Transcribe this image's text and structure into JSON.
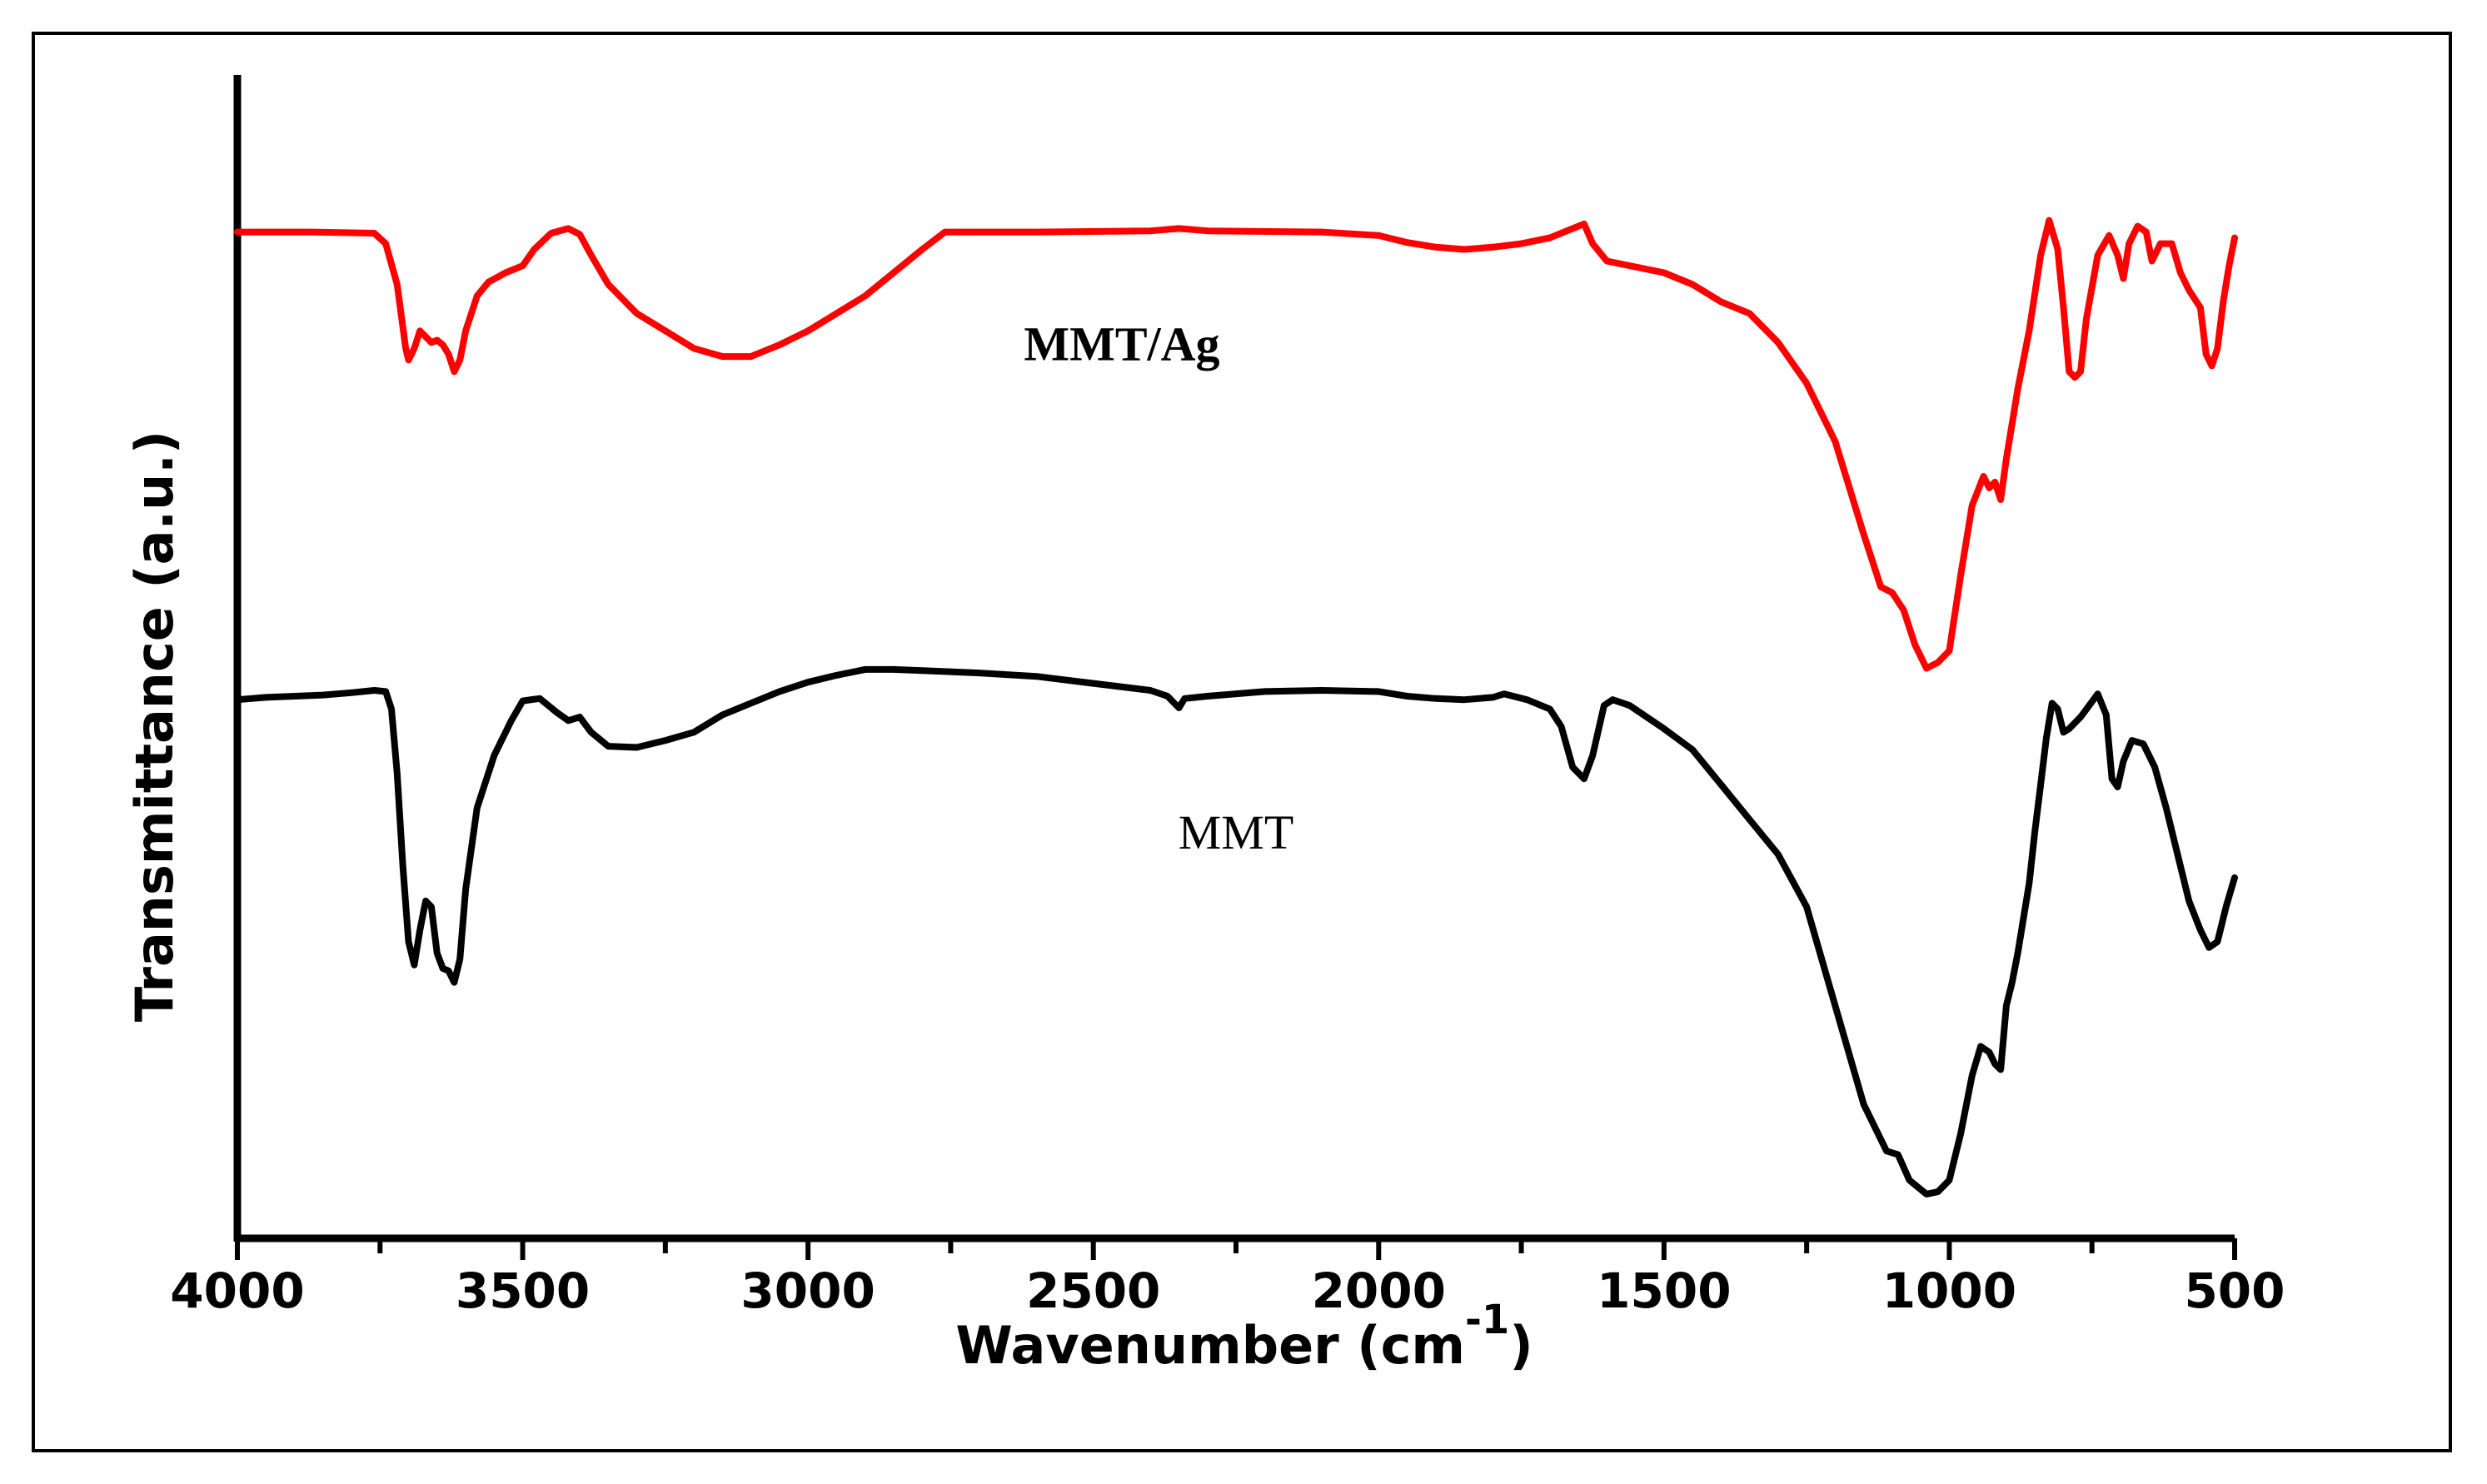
{
  "chart_data": {
    "type": "line",
    "title": "",
    "xlabel": "Wavenumber (cm",
    "xlabel_sup": "-1",
    "xlabel_close": ")",
    "ylabel": "Transmittance (a.u.)",
    "xlim": [
      4000,
      500
    ],
    "x_reversed": true,
    "ylim": [
      0,
      100
    ],
    "y_ticks_shown": false,
    "grid": false,
    "x_ticks": [
      4000,
      3500,
      3000,
      2500,
      2000,
      1500,
      1000,
      500
    ],
    "x_tick_labels": [
      "4000",
      "3500",
      "3000",
      "2500",
      "2000",
      "1500",
      "1000",
      "500"
    ],
    "series": [
      {
        "name": "MMT/Ag",
        "color": "#ff0000",
        "label": "MMT/Ag",
        "label_bold": true,
        "label_at": [
          2450,
          75.5
        ],
        "points": [
          [
            4000,
            86.5
          ],
          [
            3870,
            86.5
          ],
          [
            3760,
            86.4
          ],
          [
            3740,
            85.5
          ],
          [
            3720,
            82
          ],
          [
            3705,
            76.5
          ],
          [
            3700,
            75.5
          ],
          [
            3690,
            76.5
          ],
          [
            3680,
            78
          ],
          [
            3670,
            77.5
          ],
          [
            3660,
            77
          ],
          [
            3650,
            77.2
          ],
          [
            3640,
            76.8
          ],
          [
            3630,
            76
          ],
          [
            3620,
            74.5
          ],
          [
            3610,
            75.5
          ],
          [
            3600,
            78
          ],
          [
            3580,
            81
          ],
          [
            3560,
            82.2
          ],
          [
            3530,
            83
          ],
          [
            3500,
            83.6
          ],
          [
            3480,
            85
          ],
          [
            3450,
            86.4
          ],
          [
            3420,
            86.8
          ],
          [
            3400,
            86.3
          ],
          [
            3380,
            84.5
          ],
          [
            3350,
            82
          ],
          [
            3300,
            79.5
          ],
          [
            3250,
            78
          ],
          [
            3200,
            76.5
          ],
          [
            3150,
            75.8
          ],
          [
            3100,
            75.8
          ],
          [
            3050,
            76.8
          ],
          [
            3000,
            78
          ],
          [
            2950,
            79.5
          ],
          [
            2900,
            81
          ],
          [
            2850,
            83
          ],
          [
            2800,
            85
          ],
          [
            2760,
            86.5
          ],
          [
            2600,
            86.5
          ],
          [
            2400,
            86.6
          ],
          [
            2350,
            86.8
          ],
          [
            2300,
            86.6
          ],
          [
            2100,
            86.5
          ],
          [
            2000,
            86.2
          ],
          [
            1950,
            85.6
          ],
          [
            1900,
            85.2
          ],
          [
            1850,
            85.0
          ],
          [
            1800,
            85.2
          ],
          [
            1750,
            85.5
          ],
          [
            1700,
            86.0
          ],
          [
            1660,
            86.8
          ],
          [
            1640,
            87.2
          ],
          [
            1625,
            85.5
          ],
          [
            1600,
            84
          ],
          [
            1550,
            83.5
          ],
          [
            1500,
            83
          ],
          [
            1450,
            82
          ],
          [
            1400,
            80.5
          ],
          [
            1350,
            79.5
          ],
          [
            1300,
            77
          ],
          [
            1250,
            73.5
          ],
          [
            1200,
            68.5
          ],
          [
            1150,
            60.5
          ],
          [
            1120,
            56
          ],
          [
            1100,
            55.5
          ],
          [
            1080,
            54
          ],
          [
            1060,
            51
          ],
          [
            1040,
            49
          ],
          [
            1020,
            49.5
          ],
          [
            1000,
            50.5
          ],
          [
            980,
            57
          ],
          [
            960,
            63
          ],
          [
            940,
            65.5
          ],
          [
            930,
            64.5
          ],
          [
            920,
            65
          ],
          [
            910,
            63.5
          ],
          [
            900,
            67
          ],
          [
            880,
            73
          ],
          [
            860,
            78
          ],
          [
            840,
            84.5
          ],
          [
            825,
            87.5
          ],
          [
            810,
            85
          ],
          [
            800,
            80
          ],
          [
            790,
            74.5
          ],
          [
            780,
            74
          ],
          [
            770,
            74.5
          ],
          [
            760,
            79
          ],
          [
            740,
            84.5
          ],
          [
            720,
            86.2
          ],
          [
            705,
            84.5
          ],
          [
            695,
            82.5
          ],
          [
            685,
            85.5
          ],
          [
            670,
            87
          ],
          [
            655,
            86.5
          ],
          [
            645,
            84
          ],
          [
            630,
            85.5
          ],
          [
            610,
            85.5
          ],
          [
            595,
            83
          ],
          [
            580,
            81.5
          ],
          [
            560,
            80
          ],
          [
            550,
            76
          ],
          [
            540,
            75
          ],
          [
            530,
            76.5
          ],
          [
            520,
            80.5
          ],
          [
            510,
            83.5
          ],
          [
            500,
            86
          ]
        ]
      },
      {
        "name": "MMT",
        "color": "#000000",
        "label": "MMT",
        "label_bold": false,
        "label_at": [
          2250,
          33.5
        ],
        "points": [
          [
            4000,
            46.3
          ],
          [
            3950,
            46.5
          ],
          [
            3850,
            46.7
          ],
          [
            3800,
            46.9
          ],
          [
            3760,
            47.1
          ],
          [
            3740,
            47
          ],
          [
            3730,
            45.5
          ],
          [
            3720,
            40
          ],
          [
            3710,
            32
          ],
          [
            3700,
            25.5
          ],
          [
            3690,
            23.5
          ],
          [
            3680,
            26.5
          ],
          [
            3670,
            29
          ],
          [
            3660,
            28.5
          ],
          [
            3650,
            24.5
          ],
          [
            3640,
            23.2
          ],
          [
            3630,
            23
          ],
          [
            3620,
            22
          ],
          [
            3610,
            24
          ],
          [
            3600,
            30
          ],
          [
            3580,
            37
          ],
          [
            3550,
            41.5
          ],
          [
            3520,
            44.5
          ],
          [
            3500,
            46.2
          ],
          [
            3470,
            46.4
          ],
          [
            3440,
            45.2
          ],
          [
            3420,
            44.5
          ],
          [
            3400,
            44.8
          ],
          [
            3380,
            43.5
          ],
          [
            3350,
            42.3
          ],
          [
            3300,
            42.2
          ],
          [
            3250,
            42.8
          ],
          [
            3200,
            43.5
          ],
          [
            3150,
            45
          ],
          [
            3100,
            46
          ],
          [
            3050,
            47
          ],
          [
            3000,
            47.8
          ],
          [
            2950,
            48.4
          ],
          [
            2900,
            48.9
          ],
          [
            2850,
            48.9
          ],
          [
            2800,
            48.8
          ],
          [
            2700,
            48.6
          ],
          [
            2600,
            48.3
          ],
          [
            2500,
            47.7
          ],
          [
            2400,
            47.1
          ],
          [
            2370,
            46.6
          ],
          [
            2360,
            46.1
          ],
          [
            2350,
            45.6
          ],
          [
            2340,
            46.4
          ],
          [
            2300,
            46.6
          ],
          [
            2200,
            47
          ],
          [
            2100,
            47.1
          ],
          [
            2000,
            47
          ],
          [
            1950,
            46.6
          ],
          [
            1900,
            46.4
          ],
          [
            1850,
            46.3
          ],
          [
            1800,
            46.5
          ],
          [
            1780,
            46.8
          ],
          [
            1740,
            46.3
          ],
          [
            1700,
            45.5
          ],
          [
            1680,
            44
          ],
          [
            1660,
            40.5
          ],
          [
            1640,
            39.5
          ],
          [
            1625,
            41.5
          ],
          [
            1605,
            45.8
          ],
          [
            1590,
            46.3
          ],
          [
            1560,
            45.8
          ],
          [
            1500,
            43.8
          ],
          [
            1450,
            42
          ],
          [
            1400,
            39
          ],
          [
            1350,
            36
          ],
          [
            1300,
            33
          ],
          [
            1250,
            28.5
          ],
          [
            1200,
            20
          ],
          [
            1150,
            11.5
          ],
          [
            1110,
            7.5
          ],
          [
            1090,
            7.2
          ],
          [
            1070,
            5
          ],
          [
            1040,
            3.8
          ],
          [
            1020,
            4
          ],
          [
            1000,
            5
          ],
          [
            980,
            9
          ],
          [
            960,
            14
          ],
          [
            945,
            16.5
          ],
          [
            930,
            16
          ],
          [
            920,
            15
          ],
          [
            910,
            14.5
          ],
          [
            900,
            20
          ],
          [
            890,
            22
          ],
          [
            880,
            24.5
          ],
          [
            860,
            30.5
          ],
          [
            850,
            35
          ],
          [
            840,
            39
          ],
          [
            830,
            43
          ],
          [
            820,
            46
          ],
          [
            810,
            45.5
          ],
          [
            800,
            43.5
          ],
          [
            790,
            43.8
          ],
          [
            770,
            44.8
          ],
          [
            755,
            45.8
          ],
          [
            740,
            46.8
          ],
          [
            725,
            45
          ],
          [
            715,
            39.5
          ],
          [
            705,
            38.8
          ],
          [
            695,
            41
          ],
          [
            680,
            42.8
          ],
          [
            660,
            42.5
          ],
          [
            640,
            40.5
          ],
          [
            620,
            37
          ],
          [
            600,
            33
          ],
          [
            580,
            29
          ],
          [
            560,
            26.5
          ],
          [
            545,
            25
          ],
          [
            530,
            25.5
          ],
          [
            515,
            28.5
          ],
          [
            500,
            31
          ]
        ]
      }
    ]
  }
}
